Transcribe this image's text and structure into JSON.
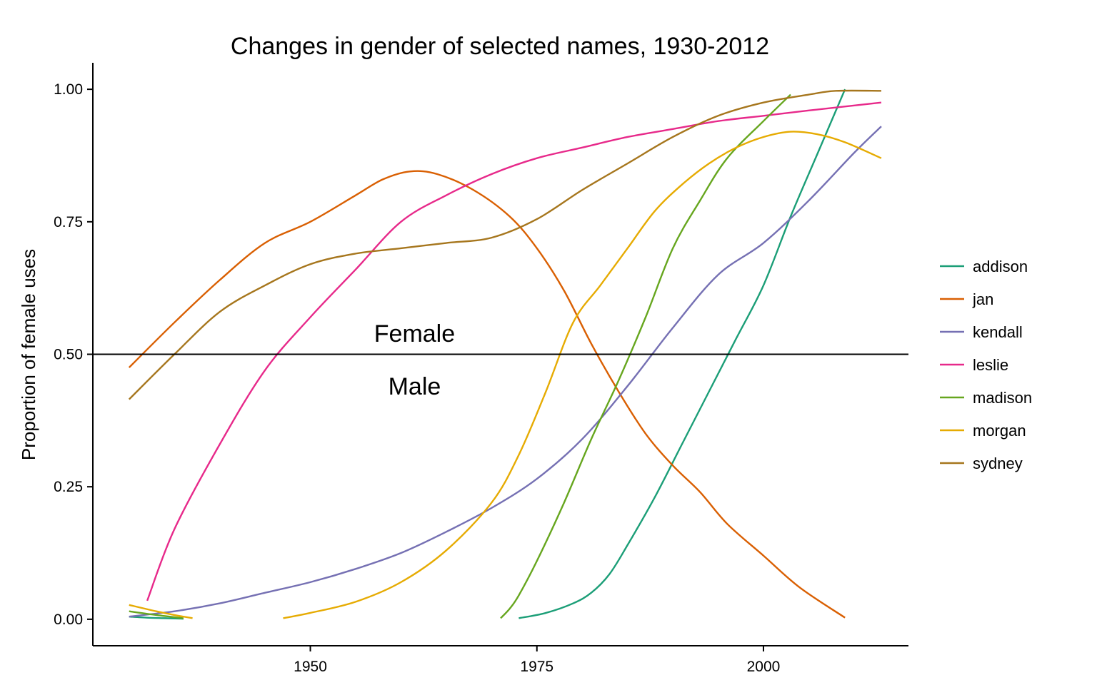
{
  "chart_data": {
    "type": "line",
    "title": "Changes in gender of selected names, 1930-2012",
    "xlabel": "",
    "ylabel": "Proportion of female uses",
    "xlim": [
      1926,
      2016
    ],
    "ylim": [
      -0.05,
      1.05
    ],
    "x_ticks": [
      1950,
      1975,
      2000
    ],
    "y_ticks": [
      0.0,
      0.25,
      0.5,
      0.75,
      1.0
    ],
    "x_tick_labels": [
      "1950",
      "1975",
      "2000"
    ],
    "y_tick_labels": [
      "0.00",
      "0.25",
      "0.50",
      "0.75",
      "1.00"
    ],
    "hline": 0.5,
    "annotations": [
      {
        "text": "Female",
        "x": 1961.5,
        "y": 0.54
      },
      {
        "text": "Male",
        "x": 1961.5,
        "y": 0.44
      }
    ],
    "grid": false,
    "legend_position": "right",
    "series": [
      {
        "name": "addison",
        "color": "#1B9E77",
        "segments": [
          [
            [
              1930,
              0.005
            ],
            [
              1932,
              0.003
            ],
            [
              1934,
              0.002
            ],
            [
              1936,
              0.001
            ]
          ],
          [
            [
              1973,
              0.002
            ],
            [
              1976,
              0.012
            ],
            [
              1979,
              0.03
            ],
            [
              1981,
              0.05
            ],
            [
              1983,
              0.085
            ],
            [
              1985,
              0.14
            ],
            [
              1988,
              0.23
            ],
            [
              1991,
              0.33
            ],
            [
              1994,
              0.43
            ],
            [
              1997,
              0.53
            ],
            [
              2000,
              0.63
            ],
            [
              2003,
              0.76
            ],
            [
              2006,
              0.88
            ],
            [
              2009,
              1.0
            ]
          ]
        ]
      },
      {
        "name": "jan",
        "color": "#D95F02",
        "segments": [
          [
            [
              1930,
              0.475
            ],
            [
              1935,
              0.56
            ],
            [
              1940,
              0.64
            ],
            [
              1945,
              0.71
            ],
            [
              1950,
              0.75
            ],
            [
              1955,
              0.8
            ],
            [
              1958,
              0.83
            ],
            [
              1961,
              0.845
            ],
            [
              1964,
              0.84
            ],
            [
              1968,
              0.81
            ],
            [
              1972,
              0.76
            ],
            [
              1975,
              0.7
            ],
            [
              1978,
              0.62
            ],
            [
              1981,
              0.52
            ],
            [
              1984,
              0.43
            ],
            [
              1987,
              0.35
            ],
            [
              1990,
              0.29
            ],
            [
              1993,
              0.24
            ],
            [
              1996,
              0.18
            ],
            [
              2000,
              0.12
            ],
            [
              2004,
              0.06
            ],
            [
              2009,
              0.003
            ]
          ]
        ]
      },
      {
        "name": "kendall",
        "color": "#7570B3",
        "segments": [
          [
            [
              1930,
              0.005
            ],
            [
              1935,
              0.015
            ],
            [
              1940,
              0.03
            ],
            [
              1945,
              0.05
            ],
            [
              1950,
              0.07
            ],
            [
              1955,
              0.095
            ],
            [
              1960,
              0.125
            ],
            [
              1965,
              0.165
            ],
            [
              1970,
              0.21
            ],
            [
              1975,
              0.265
            ],
            [
              1980,
              0.34
            ],
            [
              1985,
              0.44
            ],
            [
              1990,
              0.55
            ],
            [
              1995,
              0.65
            ],
            [
              2000,
              0.71
            ],
            [
              2005,
              0.79
            ],
            [
              2010,
              0.88
            ],
            [
              2013,
              0.93
            ]
          ]
        ]
      },
      {
        "name": "leslie",
        "color": "#E7298A",
        "segments": [
          [
            [
              1932,
              0.035
            ],
            [
              1935,
              0.17
            ],
            [
              1940,
              0.33
            ],
            [
              1945,
              0.47
            ],
            [
              1950,
              0.57
            ],
            [
              1955,
              0.66
            ],
            [
              1960,
              0.75
            ],
            [
              1965,
              0.8
            ],
            [
              1970,
              0.84
            ],
            [
              1975,
              0.87
            ],
            [
              1980,
              0.89
            ],
            [
              1985,
              0.91
            ],
            [
              1990,
              0.925
            ],
            [
              1995,
              0.94
            ],
            [
              2000,
              0.95
            ],
            [
              2005,
              0.96
            ],
            [
              2013,
              0.975
            ]
          ]
        ]
      },
      {
        "name": "madison",
        "color": "#66A61E",
        "segments": [
          [
            [
              1930,
              0.015
            ],
            [
              1933,
              0.008
            ],
            [
              1936,
              0.002
            ]
          ],
          [
            [
              1971,
              0.002
            ],
            [
              1972,
              0.02
            ],
            [
              1973,
              0.045
            ],
            [
              1975,
              0.11
            ],
            [
              1978,
              0.22
            ],
            [
              1981,
              0.34
            ],
            [
              1984,
              0.45
            ],
            [
              1987,
              0.57
            ],
            [
              1990,
              0.7
            ],
            [
              1993,
              0.79
            ],
            [
              1996,
              0.87
            ],
            [
              2000,
              0.94
            ],
            [
              2003,
              0.99
            ]
          ]
        ]
      },
      {
        "name": "morgan",
        "color": "#E6AB02",
        "segments": [
          [
            [
              1930,
              0.027
            ],
            [
              1933,
              0.015
            ],
            [
              1935,
              0.008
            ],
            [
              1937,
              0.002
            ]
          ],
          [
            [
              1947,
              0.002
            ],
            [
              1950,
              0.012
            ],
            [
              1955,
              0.033
            ],
            [
              1960,
              0.07
            ],
            [
              1965,
              0.13
            ],
            [
              1970,
              0.22
            ],
            [
              1973,
              0.31
            ],
            [
              1976,
              0.43
            ],
            [
              1979,
              0.56
            ],
            [
              1982,
              0.63
            ],
            [
              1985,
              0.7
            ],
            [
              1988,
              0.77
            ],
            [
              1991,
              0.82
            ],
            [
              1994,
              0.86
            ],
            [
              1997,
              0.89
            ],
            [
              2000,
              0.91
            ],
            [
              2003,
              0.92
            ],
            [
              2006,
              0.915
            ],
            [
              2009,
              0.9
            ],
            [
              2013,
              0.87
            ]
          ]
        ]
      },
      {
        "name": "sydney",
        "color": "#A6761D",
        "segments": [
          [
            [
              1930,
              0.415
            ],
            [
              1935,
              0.5
            ],
            [
              1940,
              0.58
            ],
            [
              1945,
              0.63
            ],
            [
              1950,
              0.67
            ],
            [
              1955,
              0.69
            ],
            [
              1960,
              0.7
            ],
            [
              1965,
              0.71
            ],
            [
              1970,
              0.72
            ],
            [
              1975,
              0.755
            ],
            [
              1980,
              0.81
            ],
            [
              1985,
              0.86
            ],
            [
              1990,
              0.91
            ],
            [
              1995,
              0.95
            ],
            [
              2000,
              0.975
            ],
            [
              2005,
              0.99
            ],
            [
              2008,
              0.997
            ],
            [
              2013,
              0.997
            ]
          ]
        ]
      }
    ]
  }
}
